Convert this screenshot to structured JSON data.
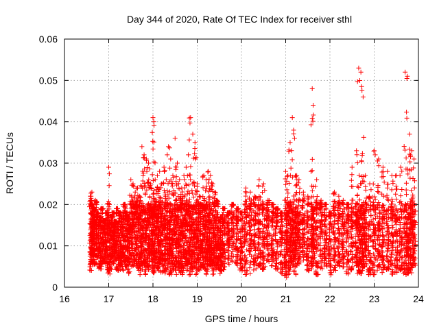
{
  "chart_data": {
    "type": "scatter",
    "title": "Day 344 of 2020, Rate Of TEC Index for receiver sthl",
    "xlabel": "GPS time / hours",
    "ylabel": "ROTI / TECUs",
    "xlim": [
      16,
      24
    ],
    "ylim": [
      0,
      0.06
    ],
    "xticks": [
      "16",
      "17",
      "18",
      "19",
      "20",
      "21",
      "22",
      "23",
      "24"
    ],
    "yticks": [
      "0",
      "0.01",
      "0.02",
      "0.03",
      "0.04",
      "0.05",
      "0.06"
    ],
    "grid": true,
    "marker": "+",
    "series": [
      {
        "name": "ROTI",
        "color": "#ff0000",
        "x": [
          16.6,
          16.62,
          16.65,
          16.7,
          16.75,
          16.8,
          16.85,
          16.9,
          16.95,
          17.0,
          17.05,
          17.1,
          17.15,
          17.2,
          17.25,
          17.3,
          17.35,
          17.4,
          17.45,
          17.5,
          17.55,
          17.6,
          17.65,
          17.7,
          17.75,
          17.8,
          17.85,
          17.9,
          17.95,
          18.0,
          18.02,
          18.05,
          18.1,
          18.15,
          18.2,
          18.25,
          18.3,
          18.35,
          18.4,
          18.45,
          18.5,
          18.55,
          18.6,
          18.65,
          18.7,
          18.75,
          18.8,
          18.85,
          18.9,
          18.95,
          19.0,
          19.05,
          19.1,
          19.15,
          19.2,
          19.25,
          19.3,
          19.35,
          19.4,
          19.45,
          19.5,
          19.55,
          19.6,
          19.7,
          19.8,
          19.9,
          20.0,
          20.1,
          20.2,
          20.3,
          20.4,
          20.5,
          20.6,
          20.7,
          20.8,
          20.9,
          21.0,
          21.05,
          21.1,
          21.15,
          21.2,
          21.25,
          21.3,
          21.4,
          21.5,
          21.6,
          21.62,
          21.7,
          21.8,
          21.9,
          22.0,
          22.1,
          22.2,
          22.3,
          22.4,
          22.5,
          22.6,
          22.65,
          22.7,
          22.75,
          22.8,
          22.9,
          23.0,
          23.1,
          23.2,
          23.3,
          23.4,
          23.5,
          23.6,
          23.7,
          23.75,
          23.8,
          23.85,
          23.9
        ],
        "y_min": [
          0.004,
          0.005,
          0.006,
          0.005,
          0.007,
          0.004,
          0.005,
          0.006,
          0.004,
          0.003,
          0.004,
          0.005,
          0.006,
          0.004,
          0.005,
          0.004,
          0.006,
          0.005,
          0.003,
          0.004,
          0.005,
          0.006,
          0.004,
          0.003,
          0.004,
          0.003,
          0.005,
          0.004,
          0.006,
          0.004,
          0.003,
          0.005,
          0.004,
          0.003,
          0.005,
          0.003,
          0.004,
          0.005,
          0.003,
          0.004,
          0.003,
          0.005,
          0.004,
          0.003,
          0.004,
          0.005,
          0.004,
          0.003,
          0.004,
          0.005,
          0.003,
          0.004,
          0.005,
          0.004,
          0.003,
          0.004,
          0.005,
          0.003,
          0.004,
          0.005,
          0.004,
          0.003,
          0.004,
          0.005,
          0.006,
          0.005,
          0.004,
          0.003,
          0.003,
          0.004,
          0.005,
          0.004,
          0.006,
          0.005,
          0.004,
          0.003,
          0.002,
          0.003,
          0.004,
          0.005,
          0.003,
          0.004,
          0.005,
          0.006,
          0.004,
          0.005,
          0.004,
          0.003,
          0.004,
          0.005,
          0.003,
          0.004,
          0.005,
          0.004,
          0.003,
          0.004,
          0.005,
          0.003,
          0.003,
          0.004,
          0.005,
          0.003,
          0.003,
          0.004,
          0.003,
          0.004,
          0.003,
          0.003,
          0.004,
          0.003,
          0.003,
          0.004,
          0.003,
          0.004
        ],
        "y_max": [
          0.022,
          0.023,
          0.019,
          0.021,
          0.018,
          0.017,
          0.019,
          0.016,
          0.018,
          0.029,
          0.017,
          0.018,
          0.016,
          0.019,
          0.018,
          0.017,
          0.02,
          0.018,
          0.017,
          0.026,
          0.025,
          0.023,
          0.024,
          0.022,
          0.034,
          0.032,
          0.031,
          0.03,
          0.025,
          0.041,
          0.04,
          0.026,
          0.027,
          0.028,
          0.025,
          0.029,
          0.026,
          0.034,
          0.031,
          0.027,
          0.036,
          0.03,
          0.026,
          0.024,
          0.027,
          0.029,
          0.032,
          0.041,
          0.037,
          0.035,
          0.025,
          0.022,
          0.02,
          0.027,
          0.026,
          0.028,
          0.027,
          0.025,
          0.023,
          0.021,
          0.016,
          0.017,
          0.019,
          0.018,
          0.02,
          0.019,
          0.018,
          0.024,
          0.023,
          0.022,
          0.026,
          0.025,
          0.021,
          0.02,
          0.019,
          0.018,
          0.028,
          0.027,
          0.035,
          0.041,
          0.036,
          0.027,
          0.026,
          0.023,
          0.022,
          0.048,
          0.044,
          0.026,
          0.021,
          0.02,
          0.018,
          0.023,
          0.022,
          0.021,
          0.02,
          0.029,
          0.033,
          0.053,
          0.052,
          0.046,
          0.027,
          0.025,
          0.033,
          0.031,
          0.029,
          0.028,
          0.027,
          0.027,
          0.029,
          0.052,
          0.051,
          0.037,
          0.033,
          0.031
        ]
      }
    ]
  }
}
